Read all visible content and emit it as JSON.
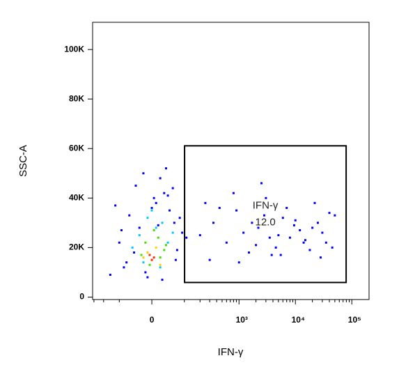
{
  "chart_data": {
    "type": "scatter",
    "x_label": "IFN-γ",
    "y_label": "SSC-A",
    "xscale": "asinh",
    "xlim": [
      -317,
      202000
    ],
    "ylim": [
      -1000,
      111000
    ],
    "xticks": [
      0,
      {
        "value": 1000,
        "label": "10³"
      },
      {
        "value": 10000,
        "label": "10⁴"
      },
      {
        "value": 100000,
        "label": "10⁵"
      }
    ],
    "xminorticks": [
      -300,
      -200,
      -100,
      100,
      200,
      300,
      400,
      500,
      600,
      700,
      800,
      900,
      2000,
      3000,
      4000,
      5000,
      6000,
      7000,
      8000,
      9000,
      20000,
      30000,
      40000,
      50000,
      60000,
      70000,
      80000,
      90000
    ],
    "yticks": [
      0,
      {
        "value": 20000,
        "label": "20K"
      },
      {
        "value": 40000,
        "label": "40K"
      },
      {
        "value": 60000,
        "label": "60K"
      },
      {
        "value": 80000,
        "label": "80K"
      },
      {
        "value": 100000,
        "label": "100K"
      }
    ],
    "series": [
      {
        "color": "#0000ff",
        "x": [
          -150,
          -80,
          -40,
          -20,
          10,
          30,
          60,
          90,
          -60,
          20,
          -10,
          45,
          -100,
          70,
          5,
          -30,
          110,
          -70,
          35,
          0,
          -45,
          80,
          -120,
          25,
          55,
          -15,
          15,
          -90,
          65,
          40,
          200,
          350,
          600,
          900,
          1500,
          2200,
          3000,
          4500,
          6000,
          8000,
          12000,
          18000,
          25000,
          35000,
          50000,
          300,
          800,
          1200,
          2000,
          2800,
          3800,
          5000,
          7000,
          9500,
          15000,
          22000,
          30000,
          45000,
          450,
          1000,
          1700,
          2500,
          3500,
          5500,
          10000,
          14000,
          20000,
          28000,
          40000,
          250
        ],
        "y": [
          9000,
          12000,
          45000,
          50000,
          38000,
          42000,
          30000,
          26000,
          33000,
          48000,
          8000,
          35000,
          22000,
          19000,
          40000,
          28000,
          24000,
          14000,
          52000,
          36000,
          18000,
          32000,
          37000,
          7000,
          44000,
          10000,
          29000,
          27000,
          15000,
          41000,
          25000,
          30000,
          22000,
          35000,
          18000,
          28000,
          40000,
          20000,
          32000,
          24000,
          27000,
          19000,
          30000,
          22000,
          33000,
          15000,
          42000,
          26000,
          21000,
          33000,
          17000,
          25000,
          36000,
          29000,
          23000,
          38000,
          26000,
          20000,
          36000,
          14000,
          30000,
          46000,
          24000,
          17000,
          31000,
          22000,
          28000,
          16000,
          34000,
          38000
        ]
      },
      {
        "color": "#00c8ff",
        "x": [
          -30,
          10,
          40,
          -10,
          25,
          -50,
          55,
          0,
          20,
          -20
        ],
        "y": [
          25000,
          28000,
          22000,
          32000,
          30000,
          20000,
          26000,
          35000,
          12000,
          14000
        ]
      },
      {
        "color": "#40e000",
        "x": [
          -15,
          15,
          30,
          -25,
          5,
          -5,
          20,
          35
        ],
        "y": [
          22000,
          24000,
          19000,
          17000,
          27000,
          13000,
          16000,
          21000
        ]
      },
      {
        "color": "#ffd000",
        "x": [
          -10,
          10,
          0,
          -20,
          20
        ],
        "y": [
          18000,
          20000,
          15000,
          16000,
          13000
        ]
      },
      {
        "color": "#ff3000",
        "x": [
          -5,
          5,
          0
        ],
        "y": [
          17000,
          16000,
          15000
        ]
      }
    ],
    "gate": {
      "name": "IFN-γ",
      "percent": "12.0",
      "x": [
        101,
        79300
      ],
      "y": [
        5900,
        61100
      ]
    }
  }
}
